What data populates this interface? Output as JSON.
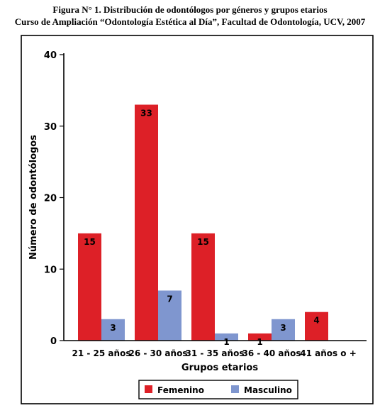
{
  "title_line1": "Figura N° 1. Distribución de odontólogos por géneros y grupos etarios",
  "title_line2": "Curso de Ampliación “Odontología Estética al Día”, Facultad de Odontología, UCV, 2007",
  "chart_data": {
    "type": "bar",
    "categories": [
      "21 - 25 años",
      "26 - 30 años",
      "31 - 35 años",
      "36 - 40 años",
      "41 años o +"
    ],
    "series": [
      {
        "name": "Femenino",
        "values": [
          15,
          33,
          15,
          1,
          4
        ],
        "color": "#dd2027"
      },
      {
        "name": "Masculino",
        "values": [
          3,
          7,
          1,
          3,
          null
        ],
        "color": "#7f96cf"
      }
    ],
    "xlabel": "Grupos etarios",
    "ylabel": "Número de odontólogos",
    "ylim": [
      0,
      40
    ],
    "yticks": [
      0,
      10,
      20,
      30,
      40
    ],
    "grid": false,
    "legend": "bottom"
  }
}
